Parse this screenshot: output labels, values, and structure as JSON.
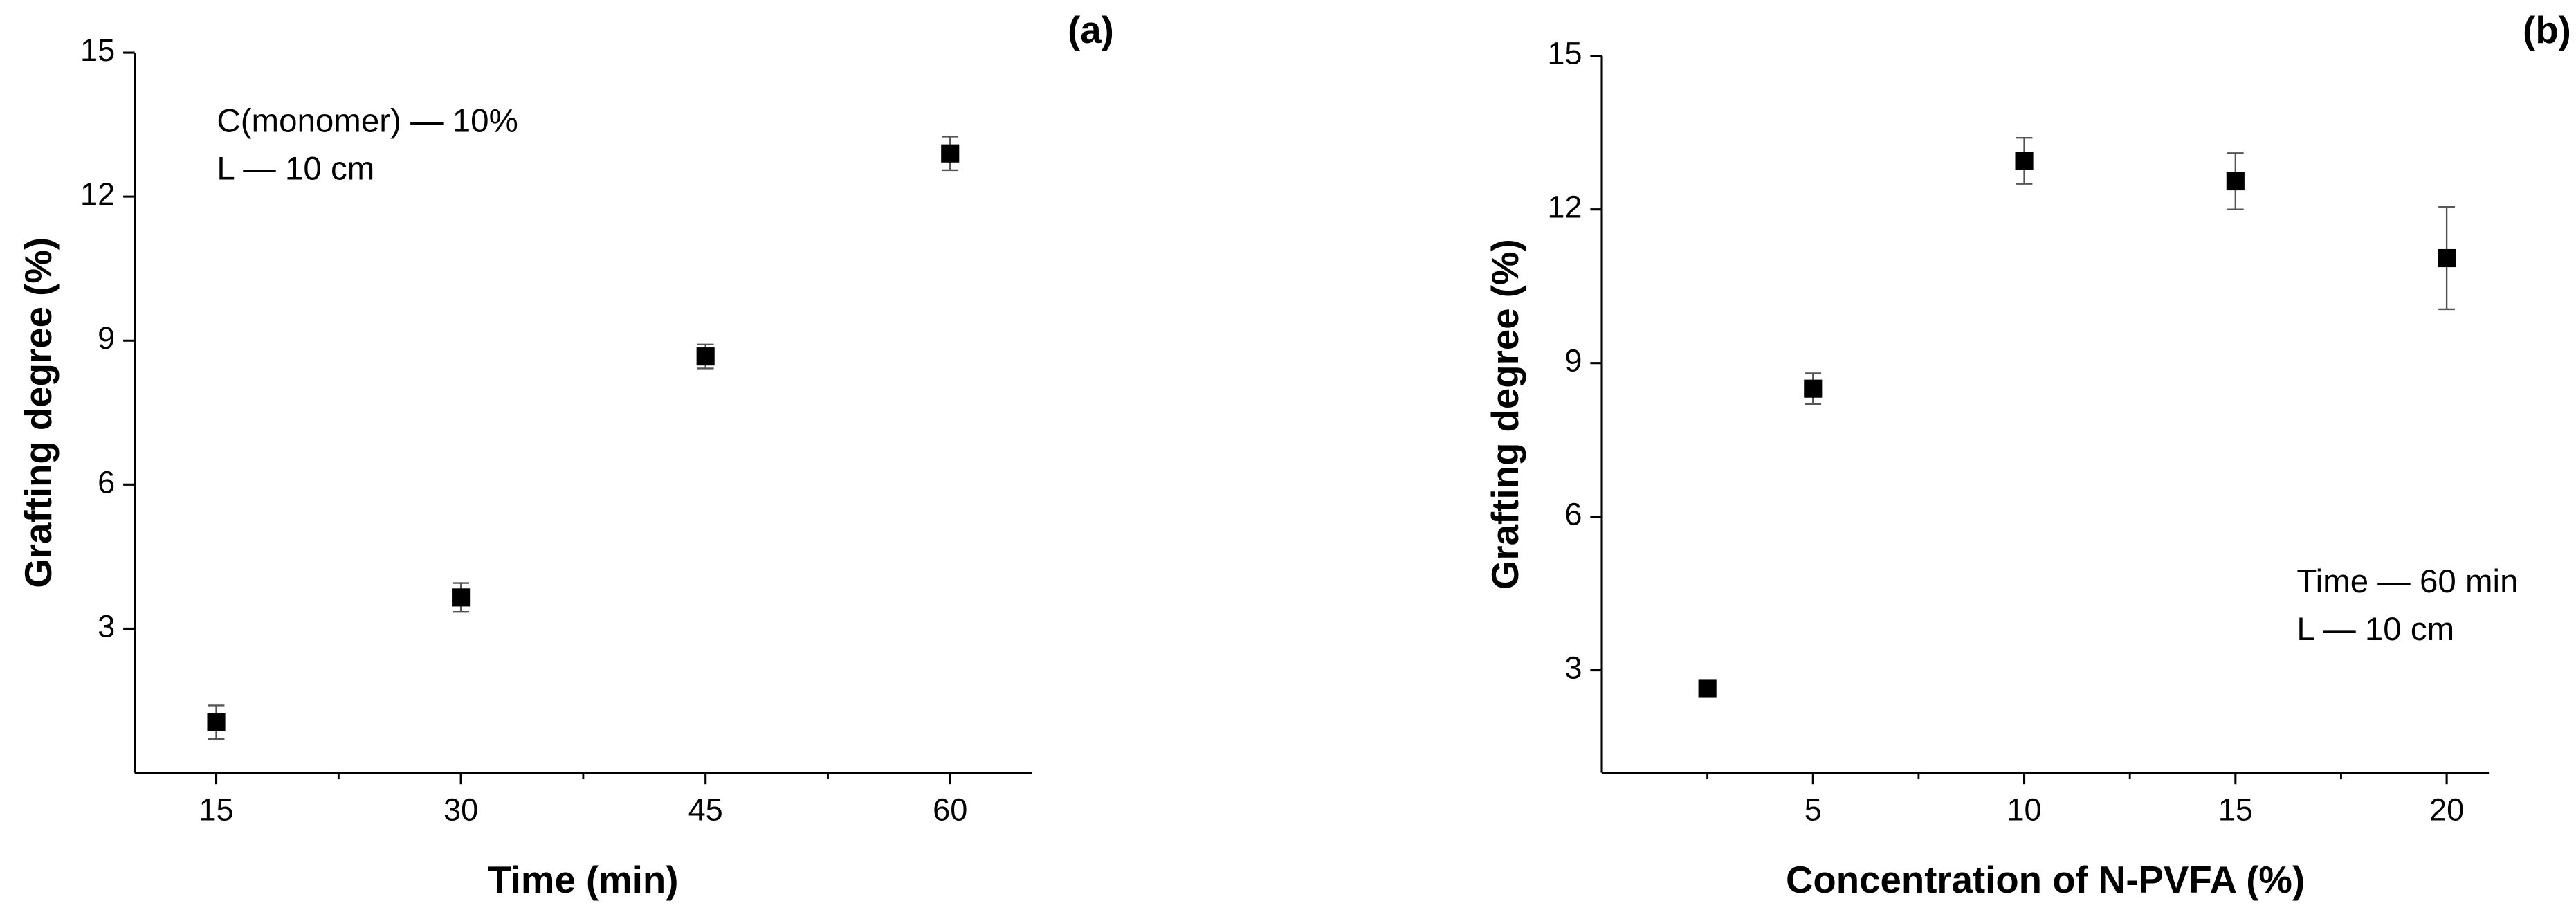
{
  "chart_data": [
    {
      "type": "scatter",
      "title": "(a)",
      "xlabel": "Time (min)",
      "ylabel": "Grafting degree (%)",
      "x": [
        15,
        30,
        45,
        60
      ],
      "values": [
        1.05,
        3.65,
        8.67,
        12.9
      ],
      "errors": [
        0.35,
        0.3,
        0.25,
        0.35
      ],
      "color": "#000000",
      "xlim": [
        10,
        65
      ],
      "ylim": [
        0,
        15
      ],
      "xticks": [
        15,
        30,
        45,
        60
      ],
      "xminorticks": [
        22.5,
        37.5,
        52.5
      ],
      "yticks": [
        3,
        6,
        9,
        12,
        15
      ],
      "annotations": [
        "C(monomer) —  10%",
        "L — 10 cm"
      ],
      "annotation_corner": "upper left"
    },
    {
      "type": "scatter",
      "title": "(b)",
      "xlabel": "Concentration of N-PVFA (%)",
      "ylabel": "Grafting degree (%)",
      "x": [
        2.5,
        5,
        10,
        15,
        20
      ],
      "values": [
        2.65,
        8.5,
        12.95,
        12.55,
        11.05
      ],
      "errors": [
        0.08,
        0.3,
        0.45,
        0.55,
        1.0
      ],
      "color": "#000000",
      "xlim": [
        0,
        21
      ],
      "ylim": [
        1,
        15
      ],
      "xticks": [
        5,
        10,
        15,
        20
      ],
      "xminorticks": [
        2.5,
        7.5,
        12.5,
        17.5
      ],
      "yticks": [
        3,
        6,
        9,
        12,
        15
      ],
      "annotations": [
        "Time — 60 min",
        "L — 10 cm"
      ],
      "annotation_corner": "lower right"
    }
  ]
}
